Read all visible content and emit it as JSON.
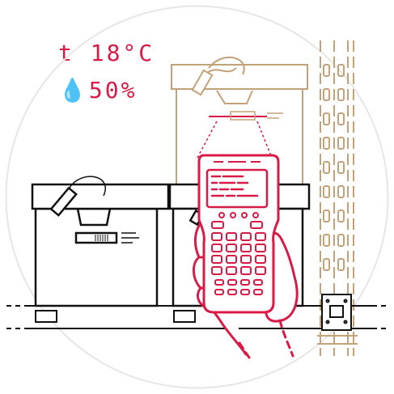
{
  "readouts": {
    "temperature": "t 18°C",
    "humidity": "💧50%"
  },
  "colors": {
    "accent": "#d81b46",
    "outline": "#111111",
    "shelf": "#c2a27a",
    "circle": "#e6e6e6"
  }
}
